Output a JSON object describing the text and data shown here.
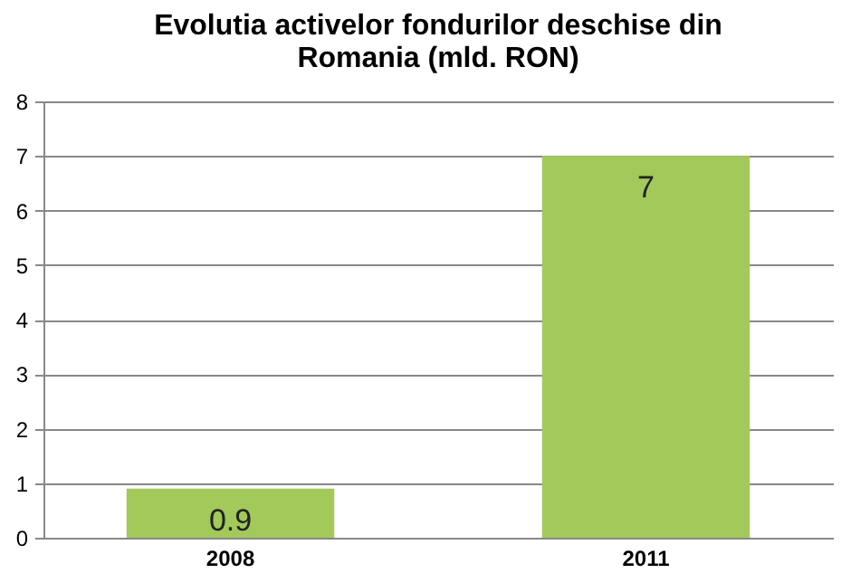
{
  "chart_data": {
    "type": "bar",
    "title": "Evolutia activelor fondurilor deschise din Romania (mld. RON)",
    "categories": [
      "2008",
      "2011"
    ],
    "values": [
      0.9,
      7
    ],
    "color": "#a2c95a",
    "ylim": [
      0,
      8
    ],
    "yticks": [
      0,
      1,
      2,
      3,
      4,
      5,
      6,
      7,
      8
    ],
    "grid": "y",
    "data_labels": true
  }
}
